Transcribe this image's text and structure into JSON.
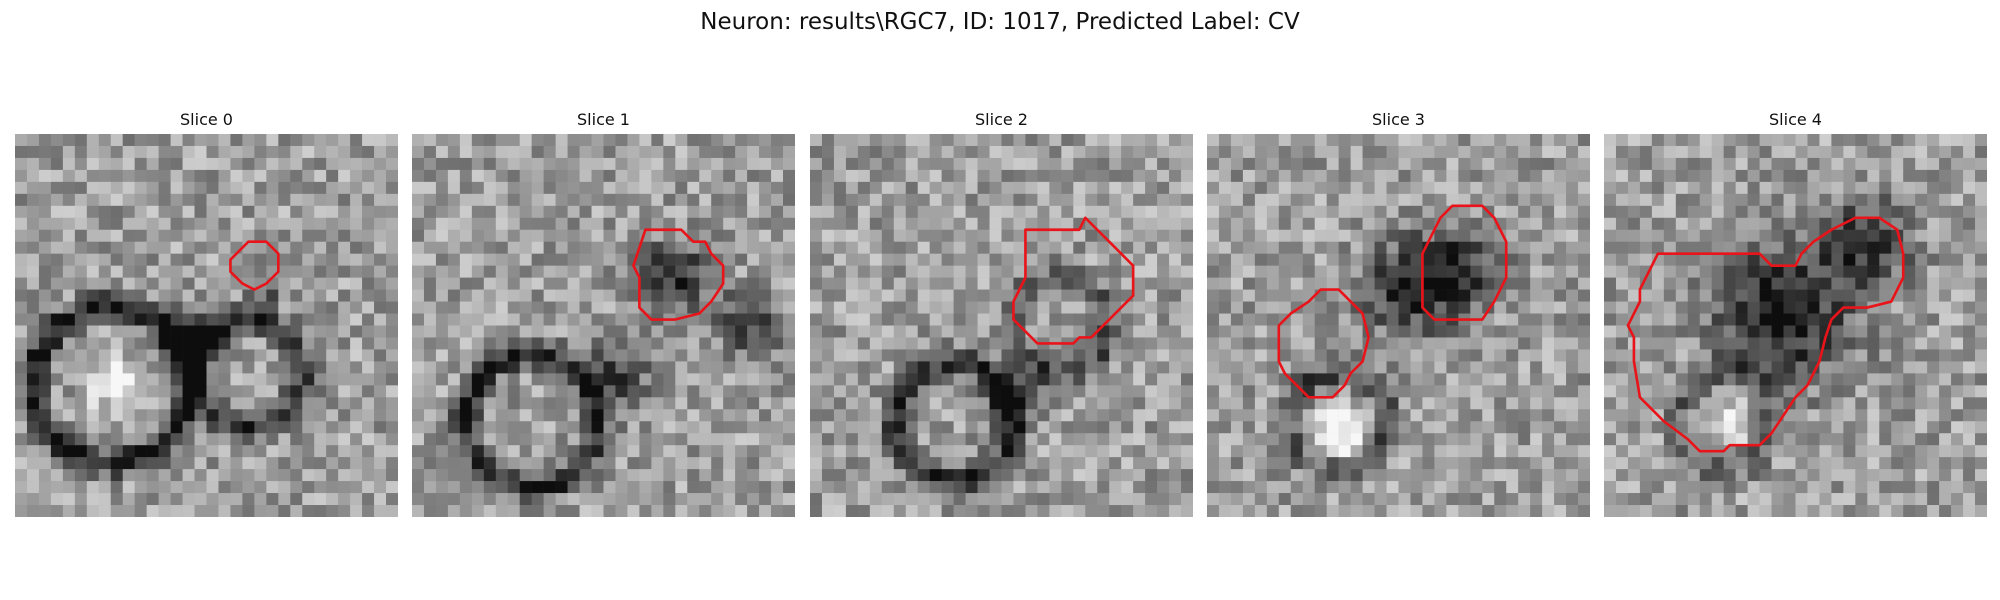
{
  "figure": {
    "title": "Neuron: results\\RGC7, ID: 1017, Predicted Label: CV"
  },
  "panels": [
    {
      "title": "Slice 0"
    },
    {
      "title": "Slice 1"
    },
    {
      "title": "Slice 2"
    },
    {
      "title": "Slice 3"
    },
    {
      "title": "Slice 4"
    }
  ],
  "colors": {
    "contour": "#e8141a",
    "background": "#ffffff",
    "colormap": "gray"
  }
}
